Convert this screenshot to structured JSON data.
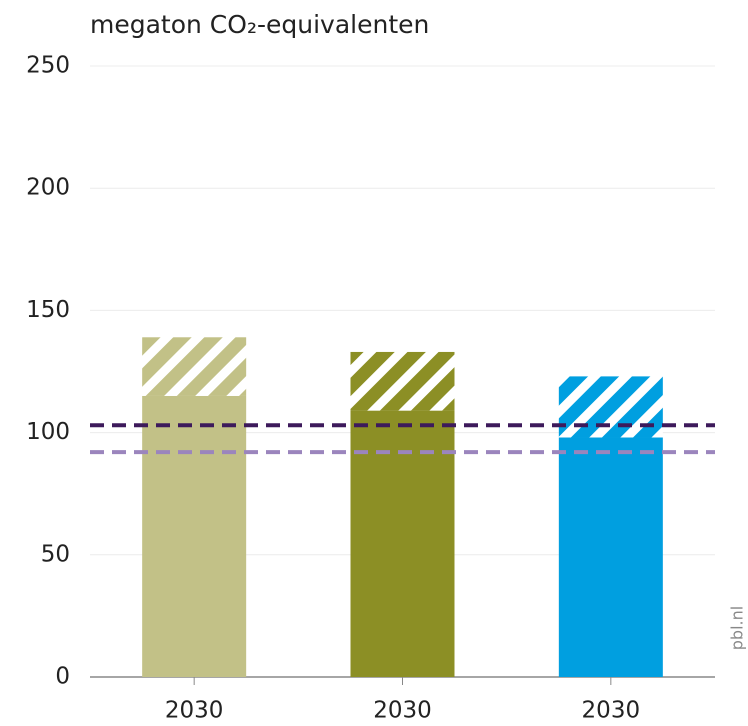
{
  "chart_data": {
    "type": "bar",
    "stacked": true,
    "title": "megaton CO₂-equivalenten",
    "source": "pbl.nl",
    "categories": [
      "2030",
      "2030",
      "2030"
    ],
    "colors": [
      "#c2c187",
      "#8c8f25",
      "#009fe0"
    ],
    "series": [
      {
        "values": [
          115,
          109,
          98
        ]
      },
      {
        "values": [
          24,
          24,
          25
        ],
        "hatched": true
      }
    ],
    "reference_lines": [
      {
        "value": 103,
        "color": "#3d1a5b",
        "dashed": true
      },
      {
        "value": 92,
        "color": "#9b85bd",
        "dashed": true
      }
    ],
    "ylim": [
      0,
      250
    ],
    "yticks": [
      0,
      50,
      100,
      150,
      200,
      250
    ],
    "grid": true
  }
}
